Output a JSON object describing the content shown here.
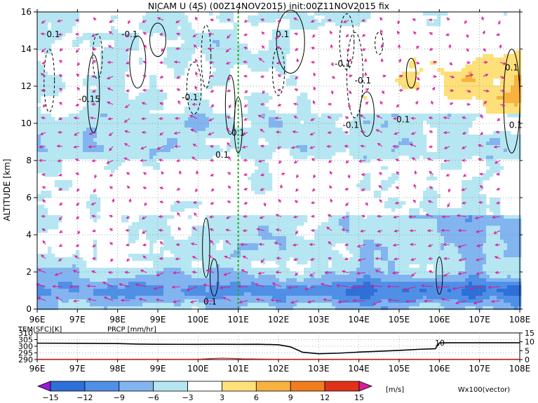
{
  "title": "NICAM U (4S) (00Z14NOV2015) init:00Z11NOV2015 fix",
  "colors": {
    "neg15": "#9a1ad6",
    "neg12": "#2e6fd8",
    "neg9": "#4f8fe6",
    "neg6": "#82b4f0",
    "neg3": "#b5e6f2",
    "zero": "#ffffff",
    "pos3": "#fde07a",
    "pos6": "#f8b240",
    "pos9": "#f27d1e",
    "pos12": "#e03218",
    "pos15": "#b00010",
    "vector": "#d81b9a",
    "ref_line": "#22aa22",
    "prcp": "#e02020"
  },
  "chart_data": [
    {
      "type": "heatmap",
      "title": "",
      "xlabel": "",
      "ylabel": "ALTITUDE [km]",
      "x_ticks": [
        "96E",
        "97E",
        "98E",
        "99E",
        "100E",
        "101E",
        "102E",
        "103E",
        "104E",
        "105E",
        "106E",
        "107E",
        "108E"
      ],
      "x_range": [
        96,
        108
      ],
      "y_ticks": [
        "0",
        "2",
        "4",
        "6",
        "8",
        "10",
        "12",
        "14",
        "16"
      ],
      "y_range": [
        0,
        16
      ],
      "grid": true,
      "reference_line_lon": 101.0,
      "contour_labels": [
        {
          "text": "0.1",
          "lon": 96.4,
          "alt": 14.8
        },
        {
          "text": "-0.1",
          "lon": 98.3,
          "alt": 14.8
        },
        {
          "text": "-0.15",
          "lon": 97.3,
          "alt": 11.3
        },
        {
          "text": "-0.1",
          "lon": 99.8,
          "alt": 11.4
        },
        {
          "text": "0.1",
          "lon": 102.1,
          "alt": 14.8
        },
        {
          "text": "-0.1",
          "lon": 103.6,
          "alt": 13.2
        },
        {
          "text": "-0.1",
          "lon": 104.1,
          "alt": 12.3
        },
        {
          "text": "0.1",
          "lon": 101.0,
          "alt": 9.5
        },
        {
          "text": "0.1",
          "lon": 100.6,
          "alt": 8.3
        },
        {
          "text": "-0.1",
          "lon": 103.8,
          "alt": 9.9
        },
        {
          "text": "0.1",
          "lon": 105.1,
          "alt": 10.2
        },
        {
          "text": "0.1",
          "lon": 107.8,
          "alt": 13.0
        },
        {
          "text": "0.1",
          "lon": 107.9,
          "alt": 9.9
        },
        {
          "text": "0.1",
          "lon": 100.3,
          "alt": 0.4
        }
      ]
    },
    {
      "type": "line",
      "title": "",
      "label_left": "TEM(SFC)[K]",
      "label_prcp": "PRCP [mm/hr]",
      "x_ticks": [
        "96E",
        "97E",
        "98E",
        "99E",
        "100E",
        "101E",
        "102E",
        "103E",
        "104E",
        "105E",
        "106E",
        "107E",
        "108E"
      ],
      "y_left_ticks": [
        "290",
        "295",
        "300",
        "305",
        "310"
      ],
      "y_left_range": [
        290,
        310
      ],
      "y_right_ticks": [
        "0",
        "5",
        "10",
        "15"
      ],
      "y_right_range": [
        0,
        15
      ],
      "annotation": "10",
      "series": [
        {
          "name": "TEM(SFC)[K]",
          "x": [
            96,
            97,
            98,
            98.5,
            99,
            100,
            100.5,
            101,
            101.5,
            102,
            102.3,
            102.6,
            103,
            103.5,
            104,
            104.5,
            105,
            105.5,
            105.9,
            106.0,
            106.3,
            107,
            108
          ],
          "values": [
            302.3,
            302.2,
            302.0,
            301.6,
            301.5,
            301.4,
            301.5,
            301.4,
            301.5,
            301.1,
            299.5,
            295.5,
            294.4,
            294.8,
            295.6,
            296.2,
            296.9,
            297.7,
            298.1,
            302.5,
            302.6,
            302.6,
            302.6
          ]
        },
        {
          "name": "PRCP [mm/hr]",
          "x": [
            96,
            100.0,
            100.3,
            100.6,
            100.9,
            101.1,
            101.5,
            102,
            103,
            108
          ],
          "values": [
            0,
            0,
            0.3,
            0.6,
            0.4,
            0.2,
            0.1,
            0,
            0,
            0
          ]
        }
      ]
    },
    {
      "type": "colorbar",
      "tick_labels": [
        "−15",
        "−12",
        "−9",
        "−6",
        "−3",
        "3",
        "6",
        "9",
        "12",
        "15"
      ],
      "units": "[m/s]",
      "vector_label": "Wx100(vector)"
    }
  ]
}
